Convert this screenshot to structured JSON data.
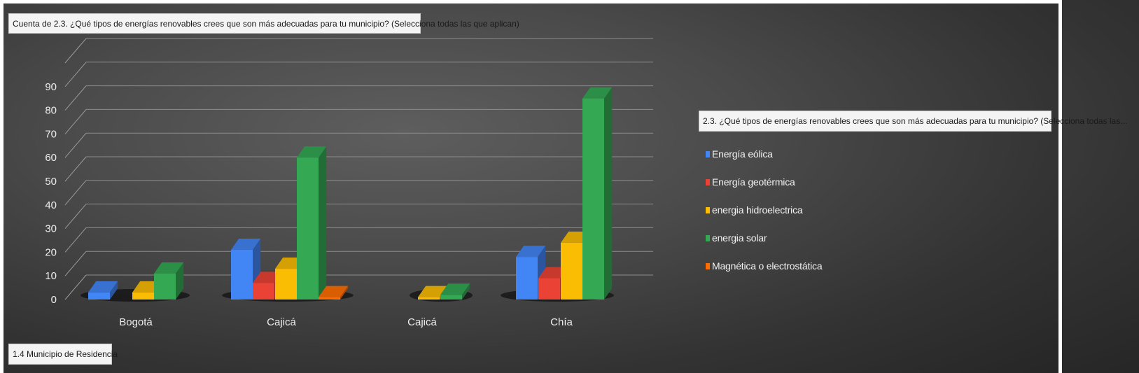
{
  "legend_field": {
    "label": "2.3. ¿Qué tipos de energías renovables crees que son más adecuadas para tu municipio? (Selecciona todas las..."
  },
  "axis_field": {
    "label": "1.4 Municipio de Residencia"
  },
  "chart_data": {
    "type": "bar",
    "title": "Cuenta de 2.3. ¿Qué tipos de energías renovables crees que son más adecuadas para tu municipio? (Selecciona todas las que aplican)",
    "categories": [
      "Bogotá",
      "Cajicá",
      "Cajicá",
      "Chía"
    ],
    "yticks": [
      "0",
      "10",
      "20",
      "30",
      "40",
      "50",
      "60",
      "70",
      "80",
      "90"
    ],
    "ylim": [
      0,
      100
    ],
    "grid": true,
    "legend_position": "right",
    "series": [
      {
        "name": "Energía eólica",
        "color": "#4285f4",
        "values": [
          3,
          21,
          null,
          18
        ]
      },
      {
        "name": "Energía geotérmica",
        "color": "#ea4335",
        "values": [
          null,
          7,
          null,
          9
        ]
      },
      {
        "name": "energia hidroelectrica",
        "color": "#fbbc04",
        "values": [
          3,
          13,
          1,
          24
        ]
      },
      {
        "name": "energia solar",
        "color": "#34a853",
        "values": [
          11,
          60,
          2,
          85
        ]
      },
      {
        "name": "Magnética o electrostática",
        "color": "#ff6d01",
        "values": [
          null,
          1,
          null,
          null
        ]
      }
    ]
  }
}
